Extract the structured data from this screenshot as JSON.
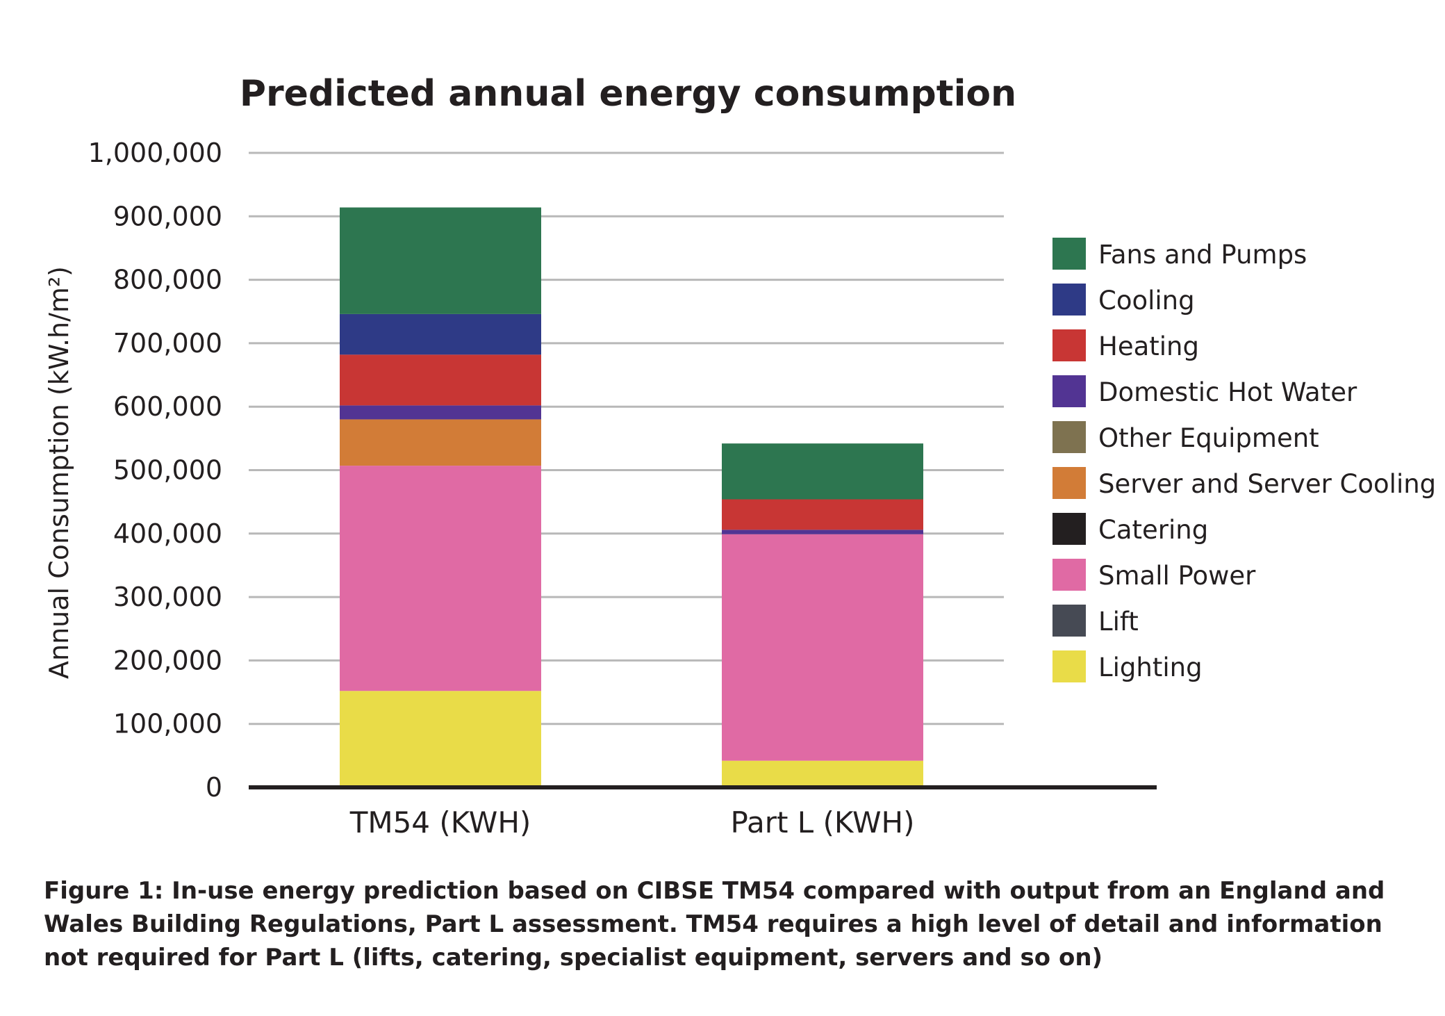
{
  "chart_data": {
    "type": "bar",
    "stacked": true,
    "title": "Predicted annual energy consumption",
    "xlabel": "",
    "ylabel": "Annual Consumption (kW.h/m²)",
    "ylim": [
      0,
      1000000
    ],
    "yticks": [
      0,
      100000,
      200000,
      300000,
      400000,
      500000,
      600000,
      700000,
      800000,
      900000,
      1000000
    ],
    "ytick_labels": [
      "0",
      "100,000",
      "200,000",
      "300,000",
      "400,000",
      "500,000",
      "600,000",
      "700,000",
      "800,000",
      "900,000",
      "1,000,000"
    ],
    "grid": true,
    "legend_position": "right",
    "categories": [
      "TM54 (KWH)",
      "Part L (KWH)"
    ],
    "series": [
      {
        "name": "Lighting",
        "color": "#e9dc48",
        "values": [
          152000,
          42000
        ]
      },
      {
        "name": "Lift",
        "color": "#464a54",
        "values": [
          0,
          0
        ]
      },
      {
        "name": "Small Power",
        "color": "#e06aa4",
        "values": [
          355000,
          357000
        ]
      },
      {
        "name": "Catering",
        "color": "#231f20",
        "values": [
          0,
          0
        ]
      },
      {
        "name": "Server and Server Cooling",
        "color": "#d27c37",
        "values": [
          73000,
          0
        ]
      },
      {
        "name": "Other Equipment",
        "color": "#7e7250",
        "values": [
          0,
          0
        ]
      },
      {
        "name": "Domestic Hot Water",
        "color": "#523493",
        "values": [
          22000,
          7000
        ]
      },
      {
        "name": "Heating",
        "color": "#c83634",
        "values": [
          80000,
          48000
        ]
      },
      {
        "name": "Cooling",
        "color": "#2e3a86",
        "values": [
          64000,
          0
        ]
      },
      {
        "name": "Fans and Pumps",
        "color": "#2d7650",
        "values": [
          168000,
          88000
        ]
      }
    ],
    "legend_order": [
      "Fans and Pumps",
      "Cooling",
      "Heating",
      "Domestic Hot Water",
      "Other Equipment",
      "Server and Server Cooling",
      "Catering",
      "Small Power",
      "Lift",
      "Lighting"
    ]
  },
  "caption": "Figure 1: In-use energy prediction based on CIBSE TM54 compared with output from an England and Wales Building Regulations, Part L assessment. TM54 requires a high level of detail and information not required for Part L (lifts, catering, specialist equipment, servers and so on)"
}
